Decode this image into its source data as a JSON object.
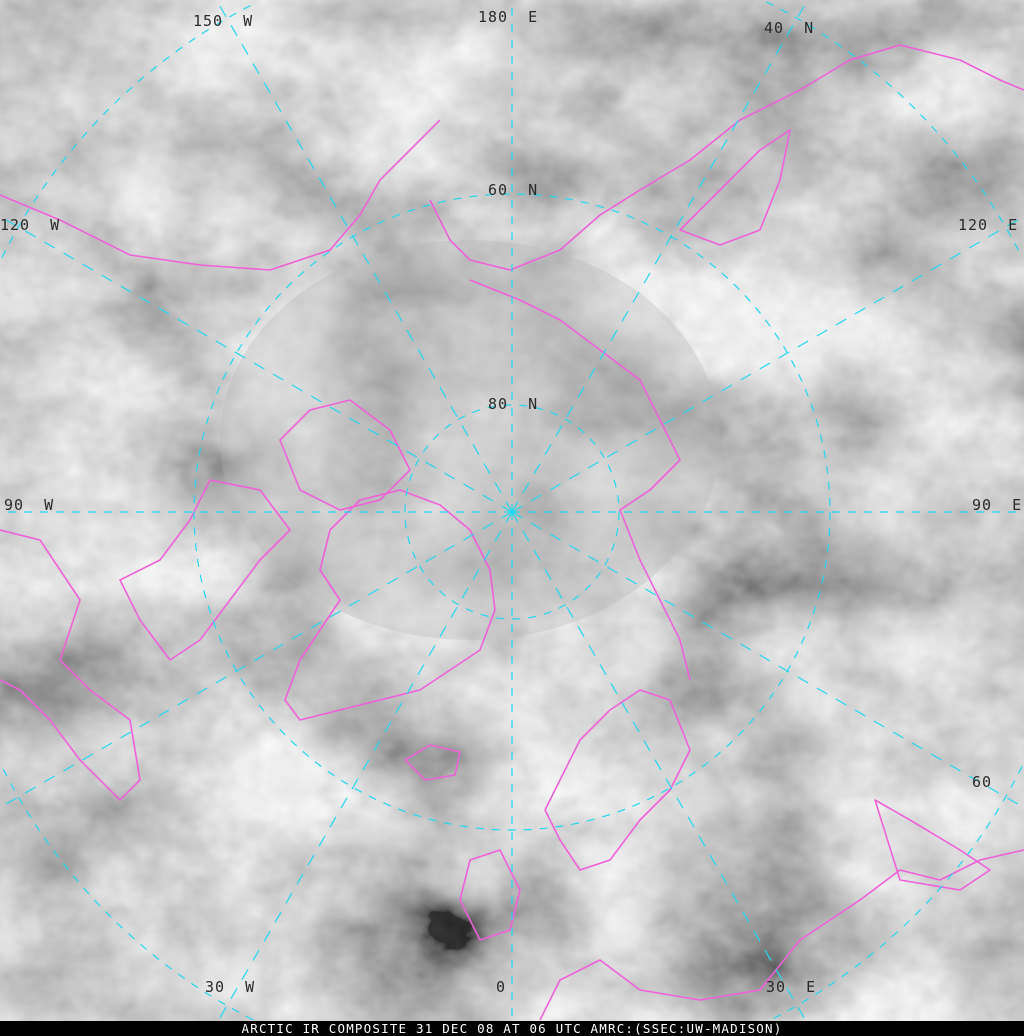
{
  "title": "ARCTIC IR COMPOSITE 31 DEC 08 AT 06 UTC AMRC:(SSEC:UW-MADISON)",
  "colors": {
    "graticule": "#22d8f0",
    "coastline": "#f060d8",
    "caption_bg": "#000000",
    "caption_text": "#ffffff"
  },
  "labels": {
    "lon_180e": "180  E",
    "lon_150w": "150  W",
    "lon_120w": "120  W",
    "lon_90w": "90  W",
    "lon_30w": "30  W",
    "lon_0": "0",
    "lon_30e": "30  E",
    "lon_60e": "60",
    "lon_90e": "90  E",
    "lon_120e": "120  E",
    "lat_40n": "40  N",
    "lat_60n": "60  N",
    "lat_80n": "80  N"
  }
}
